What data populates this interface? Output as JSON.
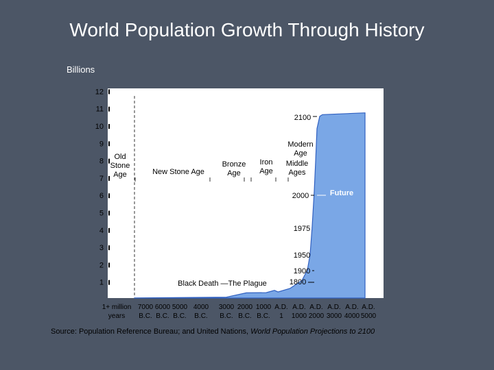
{
  "slide": {
    "title": "World Population Growth Through History",
    "unit_label": "Billions",
    "source_prefix": "Source: Population Reference Bureau; and United Nations, ",
    "source_italic": "World Population Projections to 2100"
  },
  "colors": {
    "background": "#4c5666",
    "curve_fill": "#7aa7e6",
    "curve_edge": "#3060c0",
    "text_light": "#ffffff",
    "text_dark": "#000000"
  },
  "chart_data": {
    "type": "area",
    "title": "World Population Growth Through History",
    "ylabel": "Billions",
    "ylim": [
      0,
      12.5
    ],
    "y_ticks": [
      "1",
      "2",
      "3",
      "4",
      "5",
      "6",
      "7",
      "8",
      "9",
      "10",
      "11",
      "12"
    ],
    "x_tick_labels": [
      {
        "top": "1+ million",
        "bottom": "years"
      },
      {
        "top": "7000",
        "bottom": "B.C."
      },
      {
        "top": "6000",
        "bottom": "B.C."
      },
      {
        "top": "5000",
        "bottom": "B.C."
      },
      {
        "top": "4000",
        "bottom": "B.C."
      },
      {
        "top": "3000",
        "bottom": "B.C."
      },
      {
        "top": "2000",
        "bottom": "B.C."
      },
      {
        "top": "1000",
        "bottom": "B.C."
      },
      {
        "top": "A.D.",
        "bottom": "1"
      },
      {
        "top": "A.D.",
        "bottom": "1000"
      },
      {
        "top": "A.D.",
        "bottom": "2000"
      },
      {
        "top": "A.D.",
        "bottom": "3000"
      },
      {
        "top": "A.D.",
        "bottom": "4000"
      },
      {
        "top": "A.D.",
        "bottom": "5000"
      }
    ],
    "series": [
      {
        "years": [
          -8000,
          -1000,
          1,
          1000,
          1340,
          1400,
          1600,
          1800,
          1900,
          1950,
          1975,
          2000,
          2020,
          2050,
          2100,
          2200,
          5000
        ],
        "values": [
          0.005,
          0.05,
          0.3,
          0.31,
          0.44,
          0.35,
          0.55,
          1.0,
          1.6,
          2.5,
          4.1,
          6.1,
          7.8,
          9.7,
          10.4,
          10.5,
          10.6
        ]
      }
    ],
    "annotations": [
      {
        "label": "Old Stone Age",
        "lines": [
          "Old",
          "Stone",
          "Age"
        ]
      },
      {
        "label": "New Stone Age",
        "lines": [
          "New Stone Age"
        ]
      },
      {
        "label": "Bronze Age",
        "lines": [
          "Bronze",
          "Age"
        ]
      },
      {
        "label": "Iron Age",
        "lines": [
          "Iron",
          "Age"
        ]
      },
      {
        "label": "Modern Age",
        "lines": [
          "Modern",
          "Age"
        ]
      },
      {
        "label": "Middle Ages",
        "lines": [
          "Middle",
          "Ages"
        ]
      },
      {
        "label": "Black Death —The Plague",
        "lines": [
          "Black Death —The Plague"
        ]
      },
      {
        "label": "Future",
        "lines": [
          "Future"
        ]
      }
    ],
    "year_markers": [
      {
        "label": "1800",
        "value": 1.0
      },
      {
        "label": "1900",
        "value": 1.6
      },
      {
        "label": "1950",
        "value": 2.5
      },
      {
        "label": "1975",
        "value": 4.1
      },
      {
        "label": "2000",
        "value": 6.1
      },
      {
        "label": "2100",
        "value": 10.4
      }
    ]
  }
}
